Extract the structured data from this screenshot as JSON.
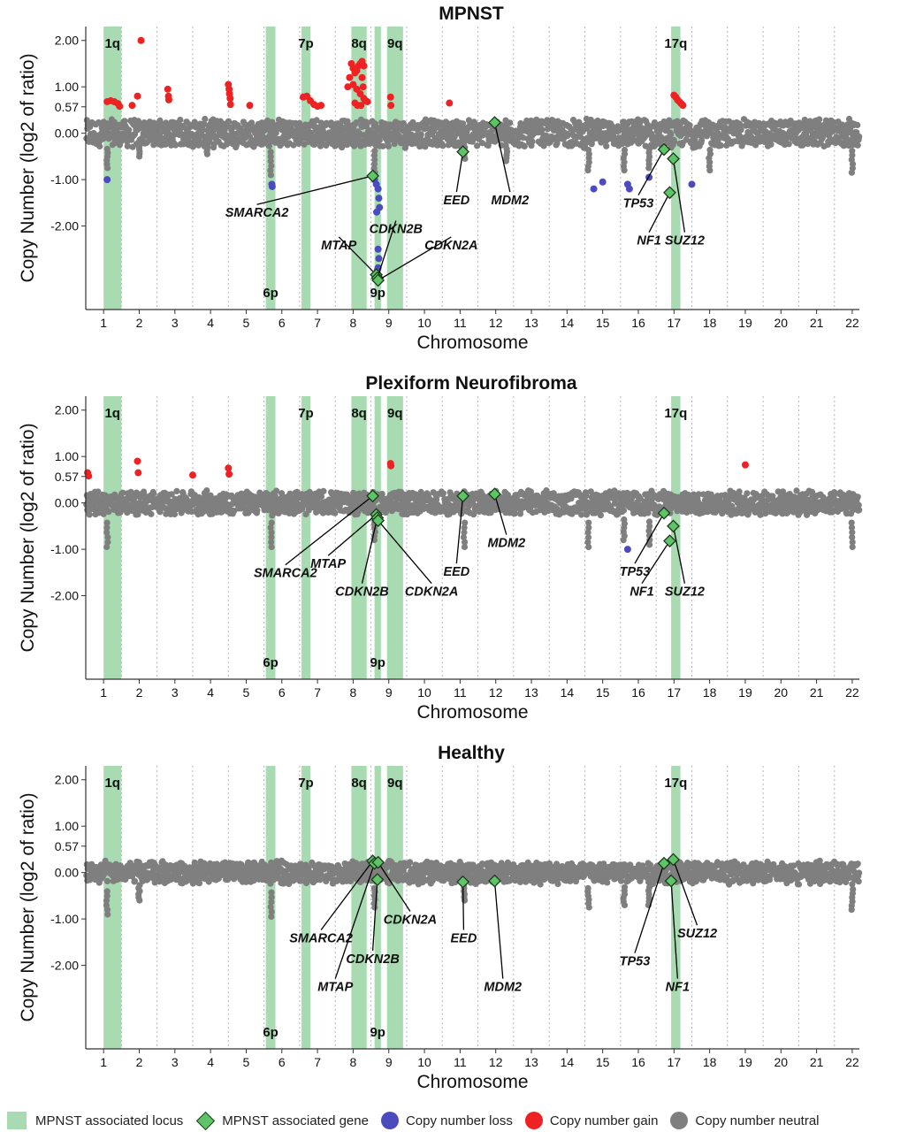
{
  "chart_data": [
    {
      "type": "scatter",
      "title": "MPNST",
      "xlabel": "Chromosome",
      "ylabel": "Copy Number (log2 of ratio)",
      "yticks": [
        "2.00",
        "1.00",
        "0.57",
        "0.00",
        "-1.00",
        "-2.00"
      ],
      "ytick_values": [
        2.0,
        1.0,
        0.57,
        0.0,
        -1.0,
        -2.0
      ],
      "ylim": [
        -3.8,
        2.3
      ],
      "xlim": [
        0.5,
        22.2
      ],
      "chromosomes": [
        "1",
        "2",
        "3",
        "4",
        "5",
        "6",
        "7",
        "8",
        "9",
        "10",
        "11",
        "12",
        "13",
        "14",
        "15",
        "16",
        "17",
        "18",
        "19",
        "20",
        "21",
        "22"
      ],
      "regions": [
        {
          "label": "1q",
          "x0": 1.0,
          "x1": 1.5,
          "label_pos": "top"
        },
        {
          "label": "6p",
          "x0": 5.55,
          "x1": 5.82,
          "label_pos": "bottom"
        },
        {
          "label": "7p",
          "x0": 6.55,
          "x1": 6.8,
          "label_pos": "top"
        },
        {
          "label": "8q",
          "x0": 7.95,
          "x1": 8.38,
          "label_pos": "top"
        },
        {
          "label": "9p",
          "x0": 8.6,
          "x1": 8.78,
          "label_pos": "bottom"
        },
        {
          "label": "9q",
          "x0": 8.95,
          "x1": 9.4,
          "label_pos": "top"
        },
        {
          "label": "17q",
          "x0": 16.92,
          "x1": 17.18,
          "label_pos": "top"
        }
      ],
      "genes": [
        {
          "name": "SMARCA2",
          "x": 8.55,
          "y": -0.92,
          "label_x": 5.3,
          "label_y": -1.65
        },
        {
          "name": "MTAP",
          "x": 8.65,
          "y": -3.05,
          "label_x": 7.6,
          "label_y": -2.35
        },
        {
          "name": "CDKN2B",
          "x": 8.68,
          "y": -3.12,
          "label_x": 9.2,
          "label_y": -2.0
        },
        {
          "name": "CDKN2A",
          "x": 8.7,
          "y": -3.17,
          "label_x": 10.75,
          "label_y": -2.35
        },
        {
          "name": "EED",
          "x": 11.08,
          "y": -0.4,
          "label_x": 10.9,
          "label_y": -1.38
        },
        {
          "name": "MDM2",
          "x": 11.97,
          "y": 0.23,
          "label_x": 12.4,
          "label_y": -1.38
        },
        {
          "name": "TP53",
          "x": 16.72,
          "y": -0.35,
          "label_x": 16.0,
          "label_y": -1.45
        },
        {
          "name": "NF1",
          "x": 16.88,
          "y": -1.28,
          "label_x": 16.3,
          "label_y": -2.25
        },
        {
          "name": "SUZ12",
          "x": 16.98,
          "y": -0.55,
          "label_x": 17.3,
          "label_y": -2.25
        }
      ],
      "gain_points": [
        [
          1.1,
          0.68
        ],
        [
          1.2,
          0.7
        ],
        [
          1.3,
          0.68
        ],
        [
          1.4,
          0.64
        ],
        [
          1.45,
          0.58
        ],
        [
          1.8,
          0.6
        ],
        [
          1.95,
          0.8
        ],
        [
          2.05,
          2.0
        ],
        [
          2.8,
          0.95
        ],
        [
          2.82,
          0.8
        ],
        [
          2.83,
          0.72
        ],
        [
          4.5,
          1.05
        ],
        [
          4.52,
          0.95
        ],
        [
          4.53,
          0.85
        ],
        [
          4.55,
          0.75
        ],
        [
          4.56,
          0.62
        ],
        [
          5.1,
          0.6
        ],
        [
          6.6,
          0.78
        ],
        [
          6.7,
          0.8
        ],
        [
          6.8,
          0.7
        ],
        [
          6.9,
          0.62
        ],
        [
          7.0,
          0.58
        ],
        [
          7.1,
          0.6
        ],
        [
          7.95,
          1.5
        ],
        [
          8.0,
          1.4
        ],
        [
          8.05,
          1.3
        ],
        [
          8.1,
          1.35
        ],
        [
          8.15,
          1.45
        ],
        [
          8.2,
          1.5
        ],
        [
          8.25,
          1.55
        ],
        [
          8.3,
          1.45
        ],
        [
          7.9,
          1.2
        ],
        [
          8.0,
          1.05
        ],
        [
          8.1,
          0.95
        ],
        [
          8.2,
          0.85
        ],
        [
          8.3,
          0.75
        ],
        [
          8.35,
          0.7
        ],
        [
          8.05,
          0.65
        ],
        [
          8.12,
          0.6
        ],
        [
          7.85,
          1.0
        ],
        [
          8.25,
          1.2
        ],
        [
          8.28,
          1.0
        ],
        [
          8.22,
          0.6
        ],
        [
          8.4,
          0.68
        ],
        [
          9.05,
          0.78
        ],
        [
          9.06,
          0.6
        ],
        [
          10.7,
          0.65
        ],
        [
          17.0,
          0.82
        ],
        [
          17.05,
          0.78
        ],
        [
          17.1,
          0.72
        ],
        [
          17.15,
          0.68
        ],
        [
          17.2,
          0.64
        ],
        [
          17.25,
          0.6
        ]
      ],
      "loss_points": [
        [
          1.1,
          -1.0
        ],
        [
          5.72,
          -1.1
        ],
        [
          5.73,
          -1.15
        ],
        [
          8.6,
          -1.0
        ],
        [
          8.65,
          -1.1
        ],
        [
          8.7,
          -1.2
        ],
        [
          8.72,
          -1.4
        ],
        [
          8.74,
          -1.6
        ],
        [
          8.66,
          -1.7
        ],
        [
          8.7,
          -2.5
        ],
        [
          8.72,
          -2.7
        ],
        [
          8.7,
          -2.9
        ],
        [
          8.68,
          -2.95
        ],
        [
          14.75,
          -1.2
        ],
        [
          15.0,
          -1.05
        ],
        [
          15.7,
          -1.1
        ],
        [
          15.75,
          -1.2
        ],
        [
          17.5,
          -1.1
        ],
        [
          16.3,
          -0.95
        ]
      ],
      "noise": [
        0.22,
        0.32
      ],
      "outlier_dips": [
        [
          1.1,
          -0.75
        ],
        [
          2.0,
          -0.5
        ],
        [
          3.9,
          -0.45
        ],
        [
          5.7,
          -0.9
        ],
        [
          8.6,
          -0.85
        ],
        [
          11.12,
          -0.55
        ],
        [
          12.3,
          -0.6
        ],
        [
          14.6,
          -0.8
        ],
        [
          15.6,
          -0.8
        ],
        [
          16.3,
          -0.75
        ],
        [
          18.0,
          -0.8
        ],
        [
          22.0,
          -0.85
        ]
      ]
    },
    {
      "type": "scatter",
      "title": "Plexiform Neurofibroma",
      "xlabel": "Chromosome",
      "ylabel": "Copy Number (log2 of ratio)",
      "yticks": [
        "2.00",
        "1.00",
        "0.57",
        "0.00",
        "-1.00",
        "-2.00"
      ],
      "ytick_values": [
        2.0,
        1.0,
        0.57,
        0.0,
        -1.0,
        -2.0
      ],
      "ylim": [
        -3.8,
        2.3
      ],
      "xlim": [
        0.5,
        22.2
      ],
      "chromosomes": [
        "1",
        "2",
        "3",
        "4",
        "5",
        "6",
        "7",
        "8",
        "9",
        "10",
        "11",
        "12",
        "13",
        "14",
        "15",
        "16",
        "17",
        "18",
        "19",
        "20",
        "21",
        "22"
      ],
      "regions": [
        {
          "label": "1q",
          "x0": 1.0,
          "x1": 1.5,
          "label_pos": "top"
        },
        {
          "label": "6p",
          "x0": 5.55,
          "x1": 5.82,
          "label_pos": "bottom"
        },
        {
          "label": "7p",
          "x0": 6.55,
          "x1": 6.8,
          "label_pos": "top"
        },
        {
          "label": "8q",
          "x0": 7.95,
          "x1": 8.38,
          "label_pos": "top"
        },
        {
          "label": "9p",
          "x0": 8.6,
          "x1": 8.78,
          "label_pos": "bottom"
        },
        {
          "label": "9q",
          "x0": 8.95,
          "x1": 9.4,
          "label_pos": "top"
        },
        {
          "label": "17q",
          "x0": 16.92,
          "x1": 17.18,
          "label_pos": "top"
        }
      ],
      "genes": [
        {
          "name": "SMARCA2",
          "x": 8.55,
          "y": 0.15,
          "label_x": 6.1,
          "label_y": -1.45
        },
        {
          "name": "MTAP",
          "x": 8.65,
          "y": -0.25,
          "label_x": 7.3,
          "label_y": -1.25
        },
        {
          "name": "CDKN2B",
          "x": 8.68,
          "y": -0.32,
          "label_x": 8.25,
          "label_y": -1.85
        },
        {
          "name": "CDKN2A",
          "x": 8.7,
          "y": -0.38,
          "label_x": 10.2,
          "label_y": -1.85
        },
        {
          "name": "EED",
          "x": 11.08,
          "y": 0.15,
          "label_x": 10.9,
          "label_y": -1.42
        },
        {
          "name": "MDM2",
          "x": 11.97,
          "y": 0.19,
          "label_x": 12.3,
          "label_y": -0.8
        },
        {
          "name": "TP53",
          "x": 16.72,
          "y": -0.22,
          "label_x": 15.9,
          "label_y": -1.42
        },
        {
          "name": "NF1",
          "x": 16.88,
          "y": -0.82,
          "label_x": 16.1,
          "label_y": -1.85
        },
        {
          "name": "SUZ12",
          "x": 16.98,
          "y": -0.5,
          "label_x": 17.3,
          "label_y": -1.85
        }
      ],
      "gain_points": [
        [
          0.55,
          0.65
        ],
        [
          0.58,
          0.58
        ],
        [
          1.95,
          0.9
        ],
        [
          1.97,
          0.65
        ],
        [
          3.5,
          0.6
        ],
        [
          4.5,
          0.75
        ],
        [
          4.52,
          0.62
        ],
        [
          9.05,
          0.85
        ],
        [
          9.06,
          0.8
        ],
        [
          19.0,
          0.82
        ]
      ],
      "loss_points": [
        [
          15.7,
          -1.0
        ]
      ],
      "noise": [
        0.18,
        0.28
      ],
      "outlier_dips": [
        [
          1.1,
          -0.95
        ],
        [
          5.7,
          -0.95
        ],
        [
          8.6,
          -0.8
        ],
        [
          11.12,
          -0.95
        ],
        [
          14.6,
          -0.95
        ],
        [
          15.6,
          -0.8
        ],
        [
          16.3,
          -0.9
        ],
        [
          22.0,
          -0.95
        ]
      ]
    },
    {
      "type": "scatter",
      "title": "Healthy",
      "xlabel": "Chromosome",
      "ylabel": "Copy Number (log2 of ratio)",
      "yticks": [
        "2.00",
        "1.00",
        "0.57",
        "0.00",
        "-1.00",
        "-2.00"
      ],
      "ytick_values": [
        2.0,
        1.0,
        0.57,
        0.0,
        -1.0,
        -2.0
      ],
      "ylim": [
        -3.8,
        2.3
      ],
      "xlim": [
        0.5,
        22.2
      ],
      "chromosomes": [
        "1",
        "2",
        "3",
        "4",
        "5",
        "6",
        "7",
        "8",
        "9",
        "10",
        "11",
        "12",
        "13",
        "14",
        "15",
        "16",
        "17",
        "18",
        "19",
        "20",
        "21",
        "22"
      ],
      "regions": [
        {
          "label": "1q",
          "x0": 1.0,
          "x1": 1.5,
          "label_pos": "top"
        },
        {
          "label": "6p",
          "x0": 5.55,
          "x1": 5.82,
          "label_pos": "bottom"
        },
        {
          "label": "7p",
          "x0": 6.55,
          "x1": 6.8,
          "label_pos": "top"
        },
        {
          "label": "8q",
          "x0": 7.95,
          "x1": 8.38,
          "label_pos": "top"
        },
        {
          "label": "9p",
          "x0": 8.6,
          "x1": 8.78,
          "label_pos": "bottom"
        },
        {
          "label": "9q",
          "x0": 8.95,
          "x1": 9.4,
          "label_pos": "top"
        },
        {
          "label": "17q",
          "x0": 16.92,
          "x1": 17.18,
          "label_pos": "top"
        }
      ],
      "genes": [
        {
          "name": "SMARCA2",
          "x": 8.55,
          "y": 0.25,
          "label_x": 7.1,
          "label_y": -1.35
        },
        {
          "name": "MTAP",
          "x": 8.6,
          "y": 0.2,
          "label_x": 7.5,
          "label_y": -2.4
        },
        {
          "name": "CDKN2B",
          "x": 8.68,
          "y": -0.15,
          "label_x": 8.55,
          "label_y": -1.8
        },
        {
          "name": "CDKN2A",
          "x": 8.7,
          "y": 0.22,
          "label_x": 9.6,
          "label_y": -0.95
        },
        {
          "name": "EED",
          "x": 11.08,
          "y": -0.2,
          "label_x": 11.1,
          "label_y": -1.35
        },
        {
          "name": "MDM2",
          "x": 11.97,
          "y": -0.18,
          "label_x": 12.2,
          "label_y": -2.4
        },
        {
          "name": "TP53",
          "x": 16.72,
          "y": 0.2,
          "label_x": 15.9,
          "label_y": -1.85
        },
        {
          "name": "NF1",
          "x": 16.92,
          "y": -0.18,
          "label_x": 17.1,
          "label_y": -2.4
        },
        {
          "name": "SUZ12",
          "x": 16.98,
          "y": 0.28,
          "label_x": 17.65,
          "label_y": -1.25
        }
      ],
      "gain_points": [],
      "loss_points": [],
      "noise": [
        0.16,
        0.26
      ],
      "outlier_dips": [
        [
          1.1,
          -0.9
        ],
        [
          2.0,
          -0.6
        ],
        [
          5.7,
          -0.95
        ],
        [
          8.6,
          -0.75
        ],
        [
          11.12,
          -0.6
        ],
        [
          14.6,
          -0.75
        ],
        [
          15.6,
          -0.7
        ],
        [
          16.3,
          -0.7
        ],
        [
          22.0,
          -0.8
        ]
      ]
    }
  ],
  "legend": {
    "locus": "MPNST associated locus",
    "gene": "MPNST associated gene",
    "loss": "Copy number loss",
    "gain": "Copy number gain",
    "neutral": "Copy number neutral"
  },
  "colors": {
    "region": "#a8dbb1",
    "gene_fill": "#5ec467",
    "gene_stroke": "#1a3a1a",
    "loss": "#4b4bbf",
    "gain": "#ee2222",
    "neutral": "#7f7f7f",
    "axis": "#333333"
  }
}
